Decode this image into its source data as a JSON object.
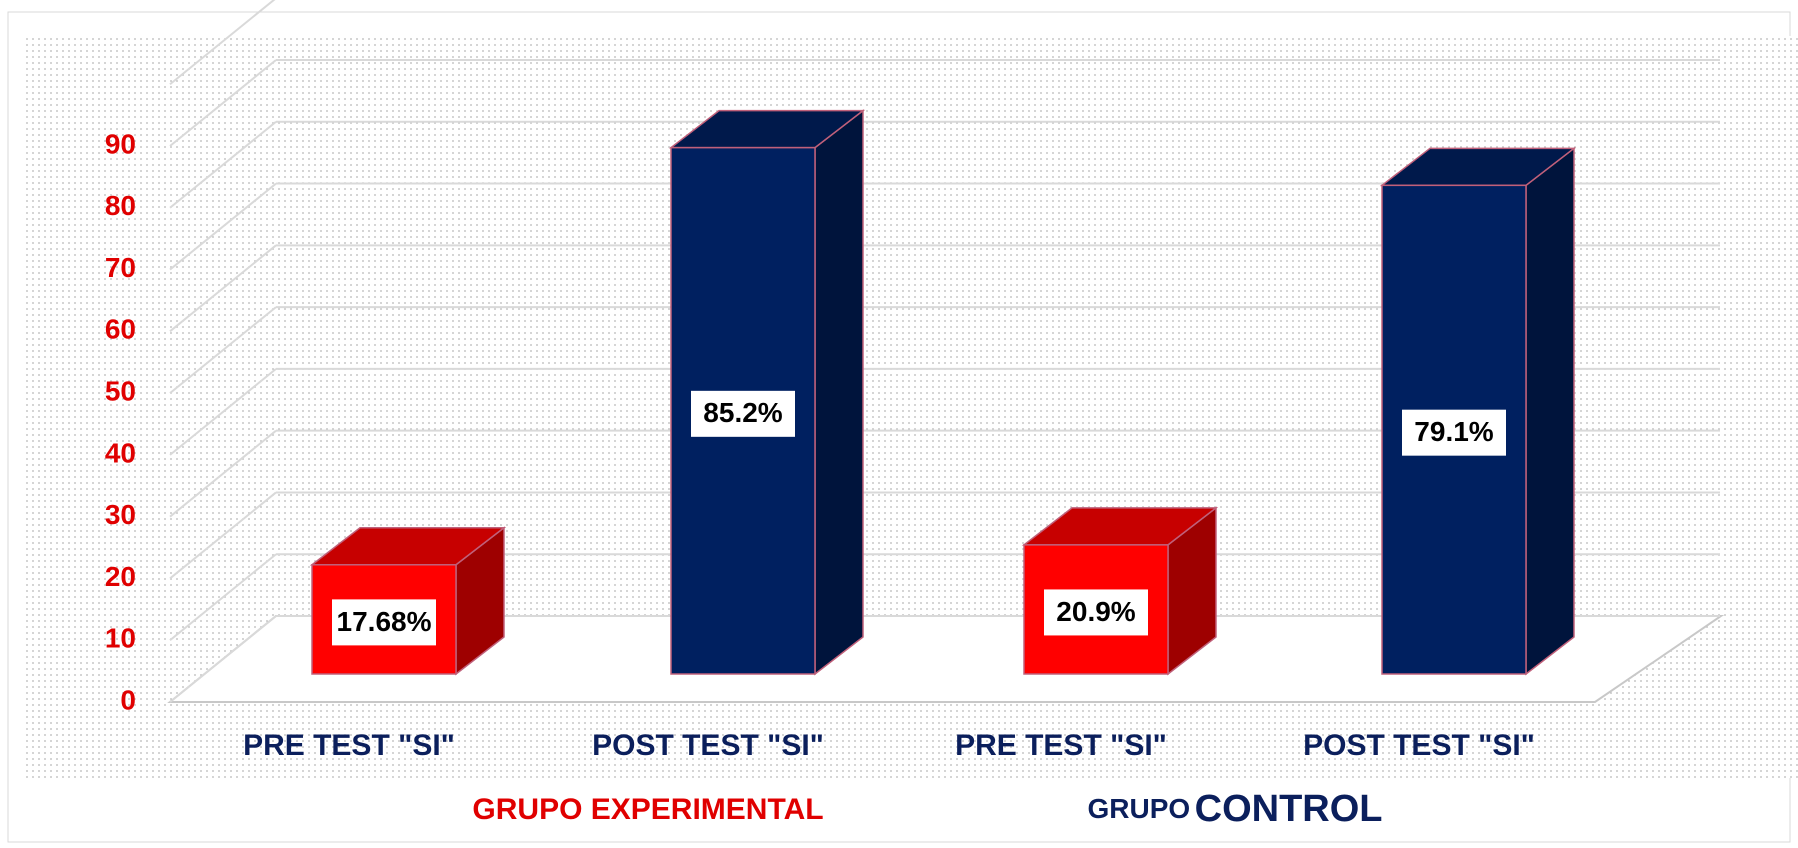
{
  "chart_data": {
    "type": "bar3d",
    "categories": [
      "PRE TEST \"SI\"",
      "POST TEST \"SI\"",
      "PRE TEST \"SI\"",
      "POST TEST \"SI\""
    ],
    "values": [
      17.68,
      85.2,
      20.9,
      79.1
    ],
    "value_labels": [
      "17.68%",
      "85.2%",
      "20.9%",
      "79.1%"
    ],
    "colors": [
      "#ff0000",
      "#002060",
      "#ff0000",
      "#002060"
    ],
    "ylim": [
      0,
      100
    ],
    "yticks": [
      0,
      10,
      20,
      30,
      40,
      50,
      60,
      70,
      80,
      90
    ],
    "grid": true,
    "groups": [
      {
        "name": "GRUPO EXPERIMENTAL",
        "color": "#e00000"
      },
      {
        "name": "GRUPO",
        "name2": "CONTROL",
        "color": "#0b1f5c"
      }
    ]
  }
}
